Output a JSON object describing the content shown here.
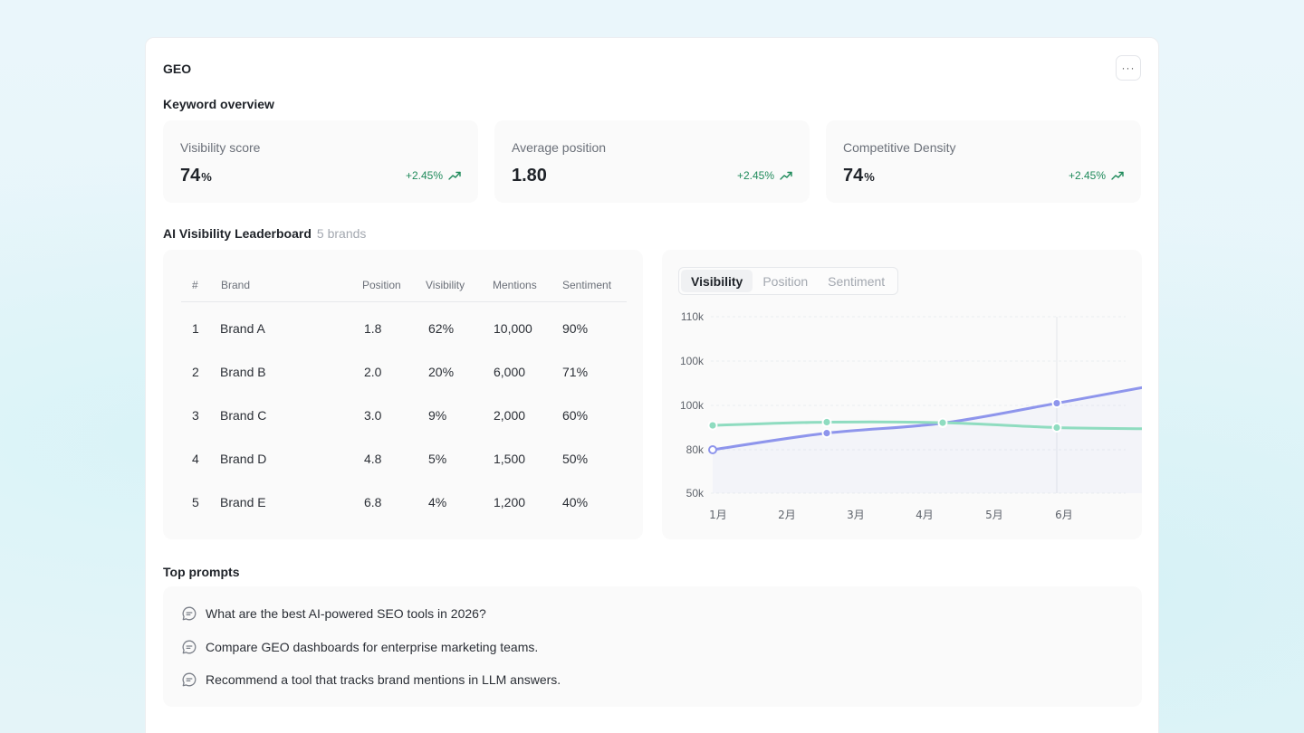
{
  "panel": {
    "title": "GEO",
    "more_label": "···"
  },
  "overview": {
    "title": "Keyword overview",
    "cards": [
      {
        "label": "Visibility score",
        "value": "74",
        "unit": "%",
        "delta": "+2.45%"
      },
      {
        "label": "Average position",
        "value": "1.80",
        "unit": "",
        "delta": "+2.45%"
      },
      {
        "label": "Competitive Density",
        "value": "74",
        "unit": "%",
        "delta": "+2.45%"
      }
    ]
  },
  "leaderboard": {
    "title": "AI Visibility Leaderboard",
    "subtitle": "5 brands",
    "columns": [
      "#",
      "Brand",
      "Position",
      "Visibility",
      "Mentions",
      "Sentiment"
    ],
    "rows": [
      [
        "1",
        "Brand A",
        "1.8",
        "62%",
        "10,000",
        "90%"
      ],
      [
        "2",
        "Brand B",
        "2.0",
        "20%",
        "6,000",
        "71%"
      ],
      [
        "3",
        "Brand C",
        "3.0",
        "9%",
        "2,000",
        "60%"
      ],
      [
        "4",
        "Brand D",
        "4.8",
        "5%",
        "1,500",
        "50%"
      ],
      [
        "5",
        "Brand E",
        "6.8",
        "4%",
        "1,200",
        "40%"
      ]
    ]
  },
  "chart_tabs": [
    "Visibility",
    "Position",
    "Sentiment"
  ],
  "chart_data": {
    "type": "line",
    "title": "",
    "xlabel": "",
    "ylabel": "",
    "categories": [
      "1月",
      "2月",
      "3月",
      "4月",
      "5月",
      "6月"
    ],
    "y_tick_labels": [
      "110k",
      "100k",
      "100k",
      "80k",
      "50k"
    ],
    "grid": true,
    "series": [
      {
        "color": "#8e95ec",
        "values": [
          80000,
          86000,
          89000,
          92000,
          98000,
          104000
        ]
      },
      {
        "color": "#8fdcc0",
        "values": [
          91000,
          92300,
          92600,
          92200,
          90500,
          90000
        ]
      }
    ]
  },
  "prompts": {
    "title": "Top prompts",
    "items": [
      "What are the best AI-powered SEO tools in 2026?",
      "Compare GEO dashboards for enterprise marketing teams.",
      "Recommend a tool that tracks brand mentions in LLM answers."
    ]
  }
}
